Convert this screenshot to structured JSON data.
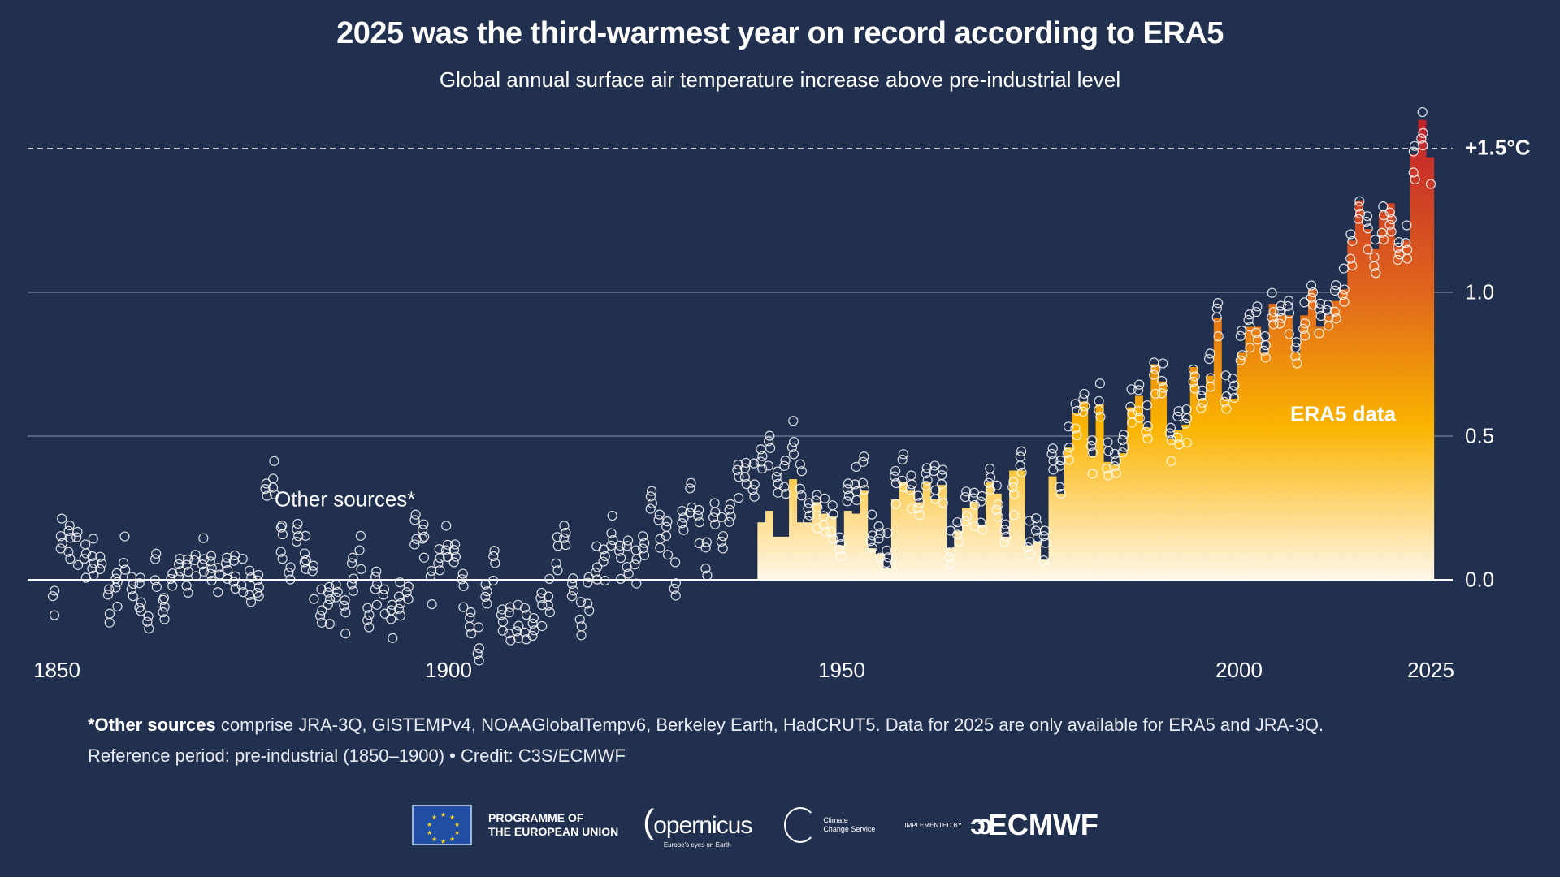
{
  "title": "2025 was the third-warmest year on record according to ERA5",
  "subtitle": "Global annual surface air temperature increase above pre-industrial level",
  "colors": {
    "background": "#22304f",
    "bar_low": "#fff8ea",
    "bar_mid": "#fbb400",
    "bar_high": "#e0661c",
    "bar_top": "#bf1e2d",
    "circles": "#ffffff"
  },
  "chart_data": {
    "type": "bar",
    "x_ticks": [
      "1850",
      "1900",
      "1950",
      "2000",
      "2025"
    ],
    "y_ticks": [
      "0.0",
      "0.5",
      "1.0"
    ],
    "threshold_label": "+1.5°C",
    "threshold_value": 1.5,
    "xlim": [
      1850,
      2025
    ],
    "ylim": [
      -0.25,
      1.62
    ],
    "grid": true,
    "series": [
      {
        "name": "ERA5 data",
        "type": "bar",
        "start_year": 1940,
        "values": [
          0.2,
          0.24,
          0.15,
          0.15,
          0.35,
          0.2,
          0.2,
          0.27,
          0.23,
          0.22,
          0.12,
          0.24,
          0.23,
          0.31,
          0.11,
          0.09,
          0.04,
          0.28,
          0.34,
          0.31,
          0.27,
          0.34,
          0.28,
          0.33,
          0.11,
          0.17,
          0.25,
          0.27,
          0.19,
          0.34,
          0.3,
          0.15,
          0.38,
          0.38,
          0.12,
          0.13,
          0.07,
          0.36,
          0.3,
          0.46,
          0.58,
          0.62,
          0.43,
          0.61,
          0.41,
          0.4,
          0.44,
          0.6,
          0.64,
          0.53,
          0.75,
          0.69,
          0.49,
          0.52,
          0.54,
          0.74,
          0.63,
          0.71,
          0.91,
          0.63,
          0.63,
          0.79,
          0.88,
          0.88,
          0.79,
          0.96,
          0.92,
          0.92,
          0.79,
          0.92,
          1.01,
          0.88,
          0.92,
          0.97,
          1.01,
          1.18,
          1.32,
          1.22,
          1.15,
          1.28,
          1.31,
          1.16,
          1.18,
          1.48,
          1.6,
          1.47
        ]
      },
      {
        "name": "Other sources*",
        "type": "scatter",
        "start_year": 1850,
        "values": [
          -0.06,
          0.13,
          0.13,
          0.09,
          0.07,
          0.06,
          0.04,
          -0.11,
          -0.03,
          0.08,
          -0.03,
          -0.07,
          -0.18,
          0.02,
          -0.11,
          0.03,
          0.02,
          0.0,
          0.04,
          0.08,
          0.03,
          -0.01,
          0.03,
          0.02,
          -0.01,
          -0.02,
          -0.03,
          0.27,
          0.33,
          0.13,
          0.04,
          0.13,
          0.07,
          -0.01,
          -0.11,
          -0.09,
          -0.04,
          -0.13,
          0.0,
          0.1,
          -0.12,
          -0.03,
          -0.11,
          -0.14,
          -0.08,
          -0.04,
          0.15,
          0.14,
          -0.04,
          0.06,
          0.13,
          0.07,
          -0.05,
          -0.16,
          -0.23,
          -0.05,
          0.03,
          -0.15,
          -0.16,
          -0.17,
          -0.15,
          -0.18,
          -0.11,
          -0.08,
          0.09,
          0.16,
          -0.06,
          -0.16,
          -0.05,
          0.04,
          0.06,
          0.14,
          0.06,
          0.06,
          0.05,
          0.13,
          0.25,
          0.15,
          0.15,
          -0.01,
          0.2,
          0.26,
          0.19,
          0.06,
          0.22,
          0.16,
          0.21,
          0.33,
          0.36,
          0.34,
          0.42,
          0.43,
          0.33,
          0.35,
          0.47,
          0.35,
          0.22,
          0.23,
          0.2,
          0.2,
          0.12,
          0.27,
          0.31,
          0.37,
          0.15,
          0.14,
          0.08,
          0.32,
          0.36,
          0.31,
          0.27,
          0.33,
          0.32,
          0.33,
          0.1,
          0.16,
          0.23,
          0.25,
          0.22,
          0.34,
          0.27,
          0.14,
          0.27,
          0.4,
          0.14,
          0.18,
          0.1,
          0.41,
          0.35,
          0.45,
          0.56,
          0.6,
          0.42,
          0.6,
          0.42,
          0.41,
          0.44,
          0.58,
          0.62,
          0.53,
          0.71,
          0.67,
          0.47,
          0.51,
          0.54,
          0.71,
          0.6,
          0.71,
          0.91,
          0.64,
          0.66,
          0.79,
          0.87,
          0.88,
          0.8,
          0.94,
          0.9,
          0.9,
          0.78,
          0.9,
          0.99,
          0.89,
          0.91,
          0.96,
          1.0,
          1.15,
          1.27,
          1.2,
          1.1,
          1.24,
          1.25,
          1.11,
          1.15,
          1.45,
          1.55,
          1.44
        ]
      }
    ]
  },
  "annotations": {
    "era5": "ERA5 data",
    "other": "Other sources*"
  },
  "footnote": {
    "line1_bold": "*Other sources",
    "line1_rest": " comprise JRA-3Q, GISTEMPv4, NOAAGlobalTempv6, Berkeley Earth, HadCRUT5. Data for 2025 are only available for ERA5 and JRA-3Q.",
    "line2": "Reference period: pre-industrial (1850–1900) • Credit: C3S/ECMWF"
  },
  "logos": {
    "eu": "PROGRAMME OF THE EUROPEAN UNION",
    "eu_line1": "PROGRAMME OF",
    "eu_line2": "THE EUROPEAN UNION",
    "copernicus": "opernicus",
    "copernicus_tagline": "Europe's eyes on Earth",
    "c3s_line1": "Climate",
    "c3s_line2": "Change Service",
    "implemented_by": "IMPLEMENTED BY",
    "ecmwf": "ECMWF"
  }
}
